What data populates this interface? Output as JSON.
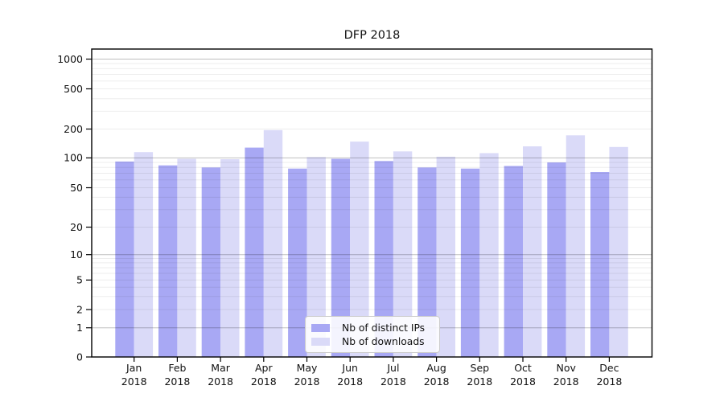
{
  "title": "DFP 2018",
  "legend": {
    "items": [
      {
        "label": "Nb of distinct IPs",
        "color": "#a8a8f4"
      },
      {
        "label": "Nb of downloads",
        "color": "#dadaf8"
      }
    ]
  },
  "colors": {
    "bar_distinct_ips": "#a8a8f4",
    "bar_downloads": "#dadaf8",
    "grid_major": "rgba(0,0,0,0.25)",
    "grid_minor": "rgba(0,0,0,0.07)",
    "axis": "#000000"
  },
  "chart_data": {
    "type": "bar",
    "title": "DFP 2018",
    "categories": [
      "Jan",
      "Feb",
      "Mar",
      "Apr",
      "May",
      "Jun",
      "Jul",
      "Aug",
      "Sep",
      "Oct",
      "Nov",
      "Dec"
    ],
    "category_year": "2018",
    "series": [
      {
        "name": "Nb of distinct IPs",
        "color": "#a8a8f4",
        "values": [
          92,
          84,
          80,
          128,
          78,
          98,
          93,
          80,
          78,
          83,
          90,
          72
        ]
      },
      {
        "name": "Nb of downloads",
        "color": "#dadaf8",
        "values": [
          115,
          98,
          97,
          195,
          102,
          148,
          117,
          103,
          112,
          132,
          172,
          130
        ]
      }
    ],
    "yscale": "symlog",
    "y_ticks": [
      0,
      1,
      2,
      5,
      10,
      20,
      50,
      100,
      200,
      500,
      1000
    ],
    "ylim": [
      0,
      1270
    ],
    "grid": "horizontal major and minor gridlines, drawn over translucent bars",
    "legend_position": "inside plot, lower center"
  }
}
